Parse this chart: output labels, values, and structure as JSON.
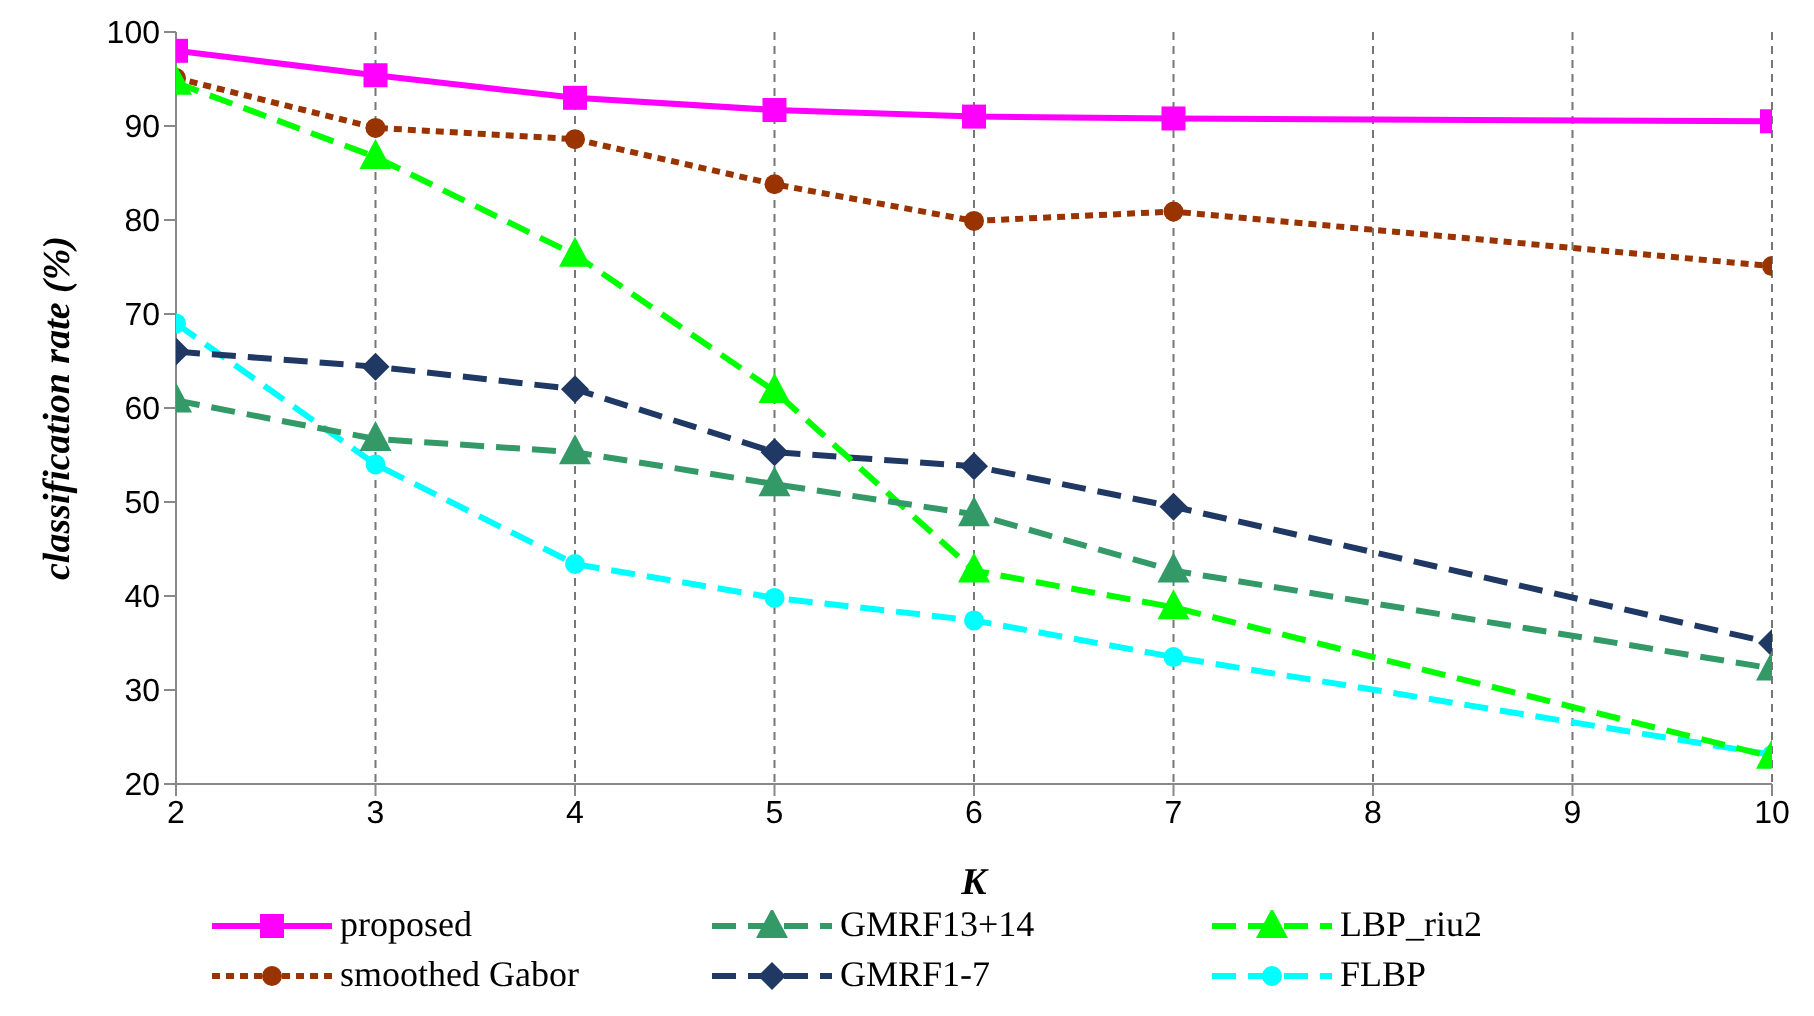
{
  "chart_data": {
    "type": "line",
    "xlabel": "K",
    "ylabel": "classification rate (%)",
    "x": [
      2,
      3,
      4,
      5,
      6,
      7,
      10
    ],
    "xlim": [
      2,
      10
    ],
    "xticks": [
      2,
      3,
      4,
      5,
      6,
      7,
      8,
      9,
      10
    ],
    "ylim": [
      20,
      100
    ],
    "yticks": [
      20,
      30,
      40,
      50,
      60,
      70,
      80,
      90,
      100
    ],
    "grid": "x",
    "legend": "bottom",
    "series": [
      {
        "name": "proposed",
        "color": "#ff00ff",
        "marker": "square",
        "line_style": "solid",
        "values": [
          98,
          95.4,
          93,
          91.7,
          91,
          90.8,
          90.5
        ]
      },
      {
        "name": "GMRF13+14",
        "color": "#339966",
        "marker": "triangle",
        "line_style": "dashed",
        "values": [
          60.8,
          56.7,
          55.3,
          51.9,
          48.7,
          42.7,
          32.3
        ]
      },
      {
        "name": "LBP_riu2",
        "color": "#00ff00",
        "marker": "triangle",
        "line_style": "dashed",
        "values": [
          94.6,
          86.7,
          76.3,
          61.8,
          42.7,
          38.8,
          22.9
        ]
      },
      {
        "name": "smoothed Gabor",
        "color": "#993300",
        "marker": "circle",
        "line_style": "dotted",
        "values": [
          95.1,
          89.8,
          88.6,
          83.8,
          79.9,
          80.9,
          75.1
        ]
      },
      {
        "name": "GMRF1-7",
        "color": "#1f3864",
        "marker": "diamond",
        "line_style": "dashed",
        "values": [
          66,
          64.4,
          62,
          55.3,
          53.8,
          49.5,
          35
        ]
      },
      {
        "name": "FLBP",
        "color": "#00ffff",
        "marker": "circle",
        "line_style": "dashed",
        "values": [
          69,
          54,
          43.4,
          39.8,
          37.4,
          33.5,
          23.1
        ]
      }
    ]
  }
}
